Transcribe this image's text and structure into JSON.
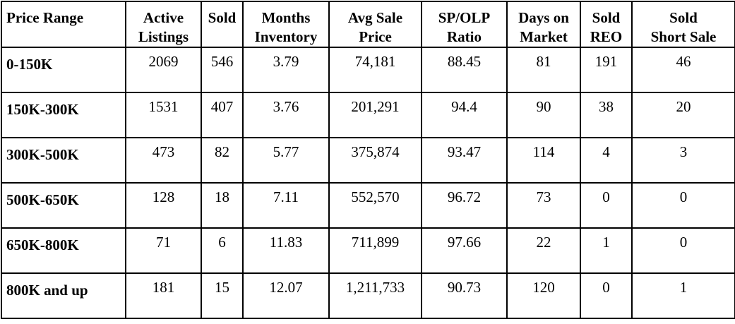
{
  "table": {
    "headers": [
      {
        "line1": "Price Range",
        "line2": ""
      },
      {
        "line1": "Active",
        "line2": "Listings"
      },
      {
        "line1": "Sold",
        "line2": ""
      },
      {
        "line1": "Months",
        "line2": "Inventory"
      },
      {
        "line1": "Avg Sale",
        "line2": "Price"
      },
      {
        "line1": "SP/OLP",
        "line2": "Ratio"
      },
      {
        "line1": "Days on",
        "line2": "Market"
      },
      {
        "line1": "Sold",
        "line2": "REO"
      },
      {
        "line1": "Sold",
        "line2": "Short Sale"
      }
    ],
    "rows": [
      {
        "range": "0-150K",
        "active": "2069",
        "sold": "546",
        "months": "3.79",
        "avg_price": "74,181",
        "ratio": "88.45",
        "days": "81",
        "reo": "191",
        "short_sale": "46"
      },
      {
        "range": "150K-300K",
        "active": "1531",
        "sold": "407",
        "months": "3.76",
        "avg_price": "201,291",
        "ratio": "94.4",
        "days": "90",
        "reo": "38",
        "short_sale": "20"
      },
      {
        "range": "300K-500K",
        "active": "473",
        "sold": "82",
        "months": "5.77",
        "avg_price": "375,874",
        "ratio": "93.47",
        "days": "114",
        "reo": "4",
        "short_sale": "3"
      },
      {
        "range": "500K-650K",
        "active": "128",
        "sold": "18",
        "months": "7.11",
        "avg_price": "552,570",
        "ratio": "96.72",
        "days": "73",
        "reo": "0",
        "short_sale": "0"
      },
      {
        "range": "650K-800K",
        "active": "71",
        "sold": "6",
        "months": "11.83",
        "avg_price": "711,899",
        "ratio": "97.66",
        "days": "22",
        "reo": "1",
        "short_sale": "0"
      },
      {
        "range": "800K and up",
        "active": "181",
        "sold": "15",
        "months": "12.07",
        "avg_price": "1,211,733",
        "ratio": "90.73",
        "days": "120",
        "reo": "0",
        "short_sale": "1"
      }
    ]
  }
}
